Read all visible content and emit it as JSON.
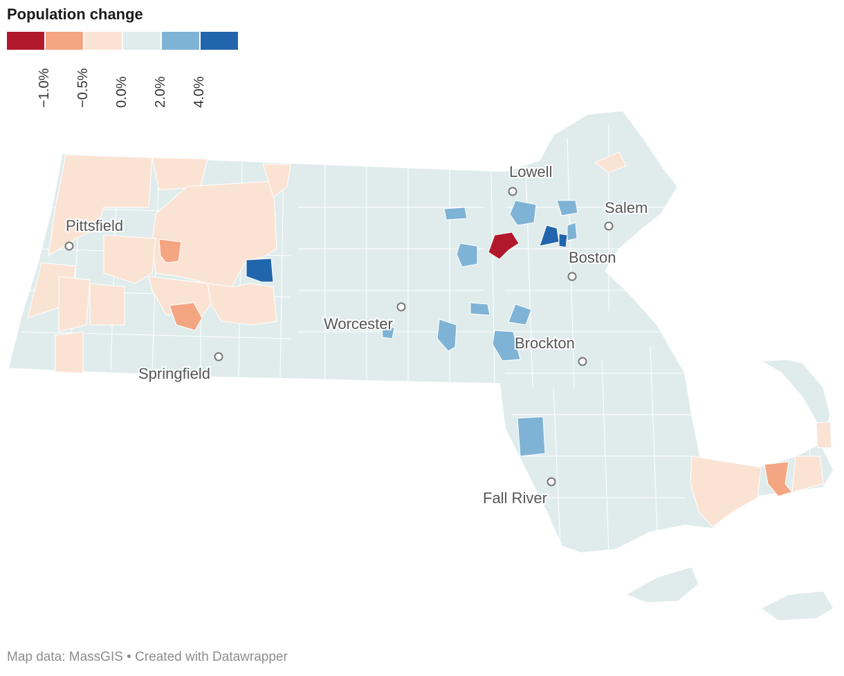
{
  "title": "Population change",
  "legend": {
    "colors": [
      "#b2182b",
      "#f4a582",
      "#fbe3d4",
      "#e0ecec",
      "#7fb3d6",
      "#2166ac"
    ],
    "ticks": [
      "−1.0%",
      "−0.5%",
      "0.0%",
      "2.0%",
      "4.0%"
    ]
  },
  "cities": [
    {
      "name": "Pittsfield"
    },
    {
      "name": "Springfield"
    },
    {
      "name": "Worcester"
    },
    {
      "name": "Lowell"
    },
    {
      "name": "Salem"
    },
    {
      "name": "Boston"
    },
    {
      "name": "Brockton"
    },
    {
      "name": "Fall River"
    }
  ],
  "footer": "Map data: MassGIS • Created with Datawrapper"
}
